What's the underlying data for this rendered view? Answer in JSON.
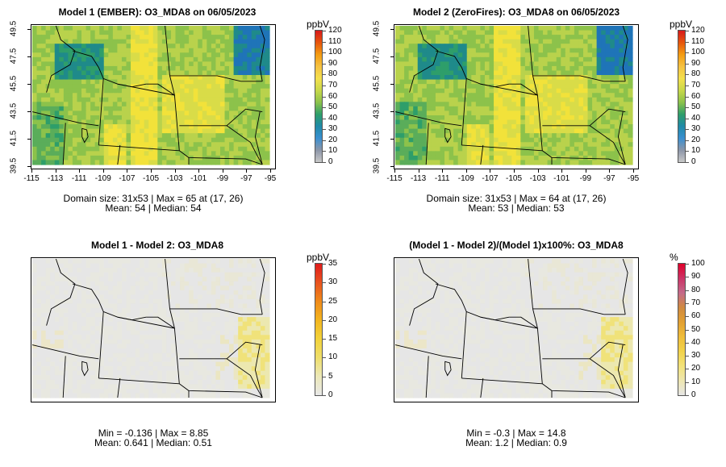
{
  "panels": [
    {
      "title": "Model 1 (EMBER): O3_MDA8 on 06/05/2023",
      "stat1": "Domain size: 31x53 | Max = 65 at (17, 26)",
      "stat2": "Mean: 54 |  Median: 54",
      "show_axes": true,
      "fill": "ozone_high"
    },
    {
      "title": "Model 2 (ZeroFires): O3_MDA8 on 06/05/2023",
      "stat1": "Domain size: 31x53 | Max = 64 at (17, 26)",
      "stat2": "Mean: 53 |  Median: 53",
      "show_axes": true,
      "fill": "ozone_high"
    },
    {
      "title": "Model 1 - Model 2: O3_MDA8",
      "stat1": "Min = -0.136 | Max = 8.85",
      "stat2": "Mean: 0.641 |  Median: 0.51",
      "show_axes": false,
      "fill": "difference"
    },
    {
      "title": "(Model 1 - Model 2)/(Model 1)x100%: O3_MDA8",
      "stat1": "Min = -0.3 | Max = 14.8",
      "stat2": "Mean: 1.2 |  Median: 0.9",
      "show_axes": false,
      "fill": "difference"
    }
  ],
  "axes": {
    "lat_ticks": [
      "49.5",
      "47.5",
      "45.5",
      "43.5",
      "41.5",
      "39.5"
    ],
    "lon_ticks": [
      "-115",
      "-113",
      "-111",
      "-109",
      "-107",
      "-105",
      "-103",
      "-101",
      "-99",
      "-97",
      "-95"
    ]
  },
  "colorbars": [
    {
      "unit": "ppbV",
      "labels": [
        "120",
        "110",
        "100",
        "90",
        "80",
        "70",
        "60",
        "50",
        "40",
        "30",
        "20",
        "10",
        "0"
      ]
    },
    {
      "unit": "ppbV",
      "labels": [
        "120",
        "110",
        "100",
        "90",
        "80",
        "70",
        "60",
        "50",
        "40",
        "30",
        "20",
        "10",
        "0"
      ]
    },
    {
      "unit": "ppbV",
      "labels": [
        "35",
        "30",
        "25",
        "20",
        "15",
        "10",
        "5",
        "0"
      ]
    },
    {
      "unit": "%",
      "labels": [
        "100",
        "90",
        "80",
        "70",
        "60",
        "50",
        "40",
        "30",
        "20",
        "10",
        "0"
      ]
    }
  ],
  "colors": {
    "ozone_scale": [
      "#d7191c",
      "#e6550d",
      "#f39c12",
      "#f5c242",
      "#f4e04d",
      "#c8d84a",
      "#8cc24b",
      "#2e9e6a",
      "#1f8aa8",
      "#3a8fd0",
      "#8c96a8",
      "#c8c8c8"
    ],
    "diff_scale": [
      "#e01b1b",
      "#e8531f",
      "#ef8a1a",
      "#f2b51f",
      "#f2d23a",
      "#eede6a",
      "#ece8b8",
      "#e8e8e8"
    ],
    "pct_scale": [
      "#e0002a",
      "#cc3366",
      "#c46a8a",
      "#d08a40",
      "#e2a033",
      "#efbd3a",
      "#f2d24a",
      "#f2e27a",
      "#eee6b0",
      "#e6e6e6"
    ],
    "background_gray": "#e6e6e6"
  }
}
